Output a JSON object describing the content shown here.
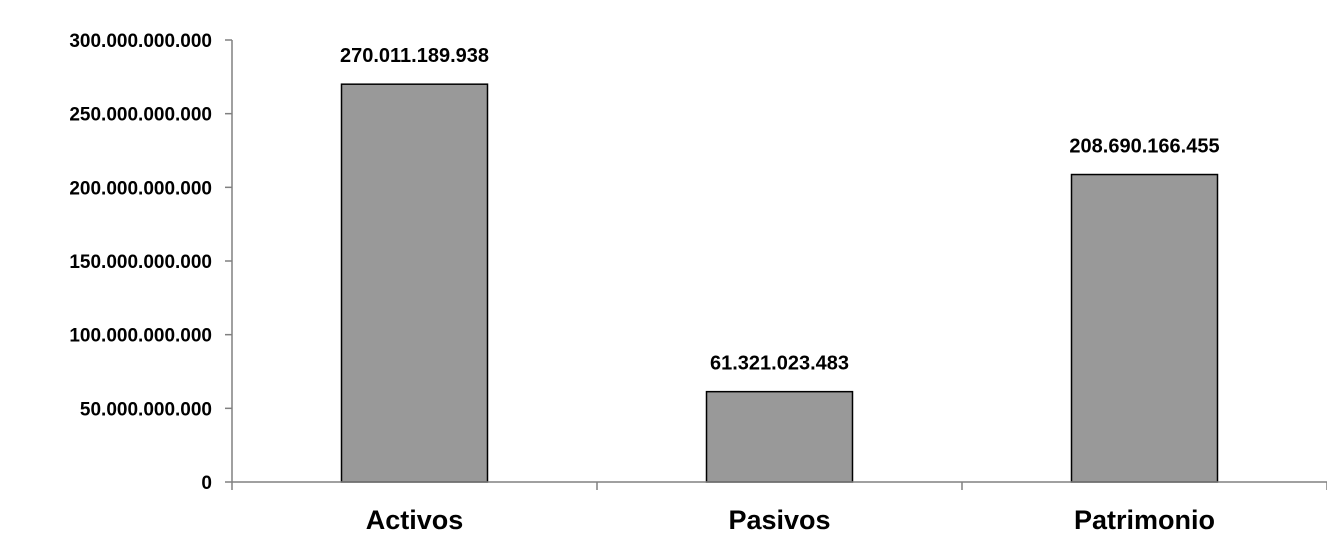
{
  "chart_data": {
    "type": "bar",
    "title": "",
    "xlabel": "",
    "ylabel": "",
    "categories": [
      "Activos",
      "Pasivos",
      "Patrimonio"
    ],
    "values": [
      270011189938,
      61321023483,
      208690166455
    ],
    "value_labels": [
      "270.011.189.938",
      "61.321.023.483",
      "208.690.166.455"
    ],
    "ylim": [
      0,
      300000000000
    ],
    "yticks": [
      0,
      50000000000,
      100000000000,
      150000000000,
      200000000000,
      250000000000,
      300000000000
    ],
    "ytick_labels": [
      "0",
      "50.000.000.000",
      "100.000.000.000",
      "150.000.000.000",
      "200.000.000.000",
      "250.000.000.000",
      "300.000.000.000"
    ],
    "grid": false,
    "legend": "none",
    "colors": {
      "bar": "#999999",
      "bar_edge": "#000000",
      "axis": "#808080"
    }
  }
}
